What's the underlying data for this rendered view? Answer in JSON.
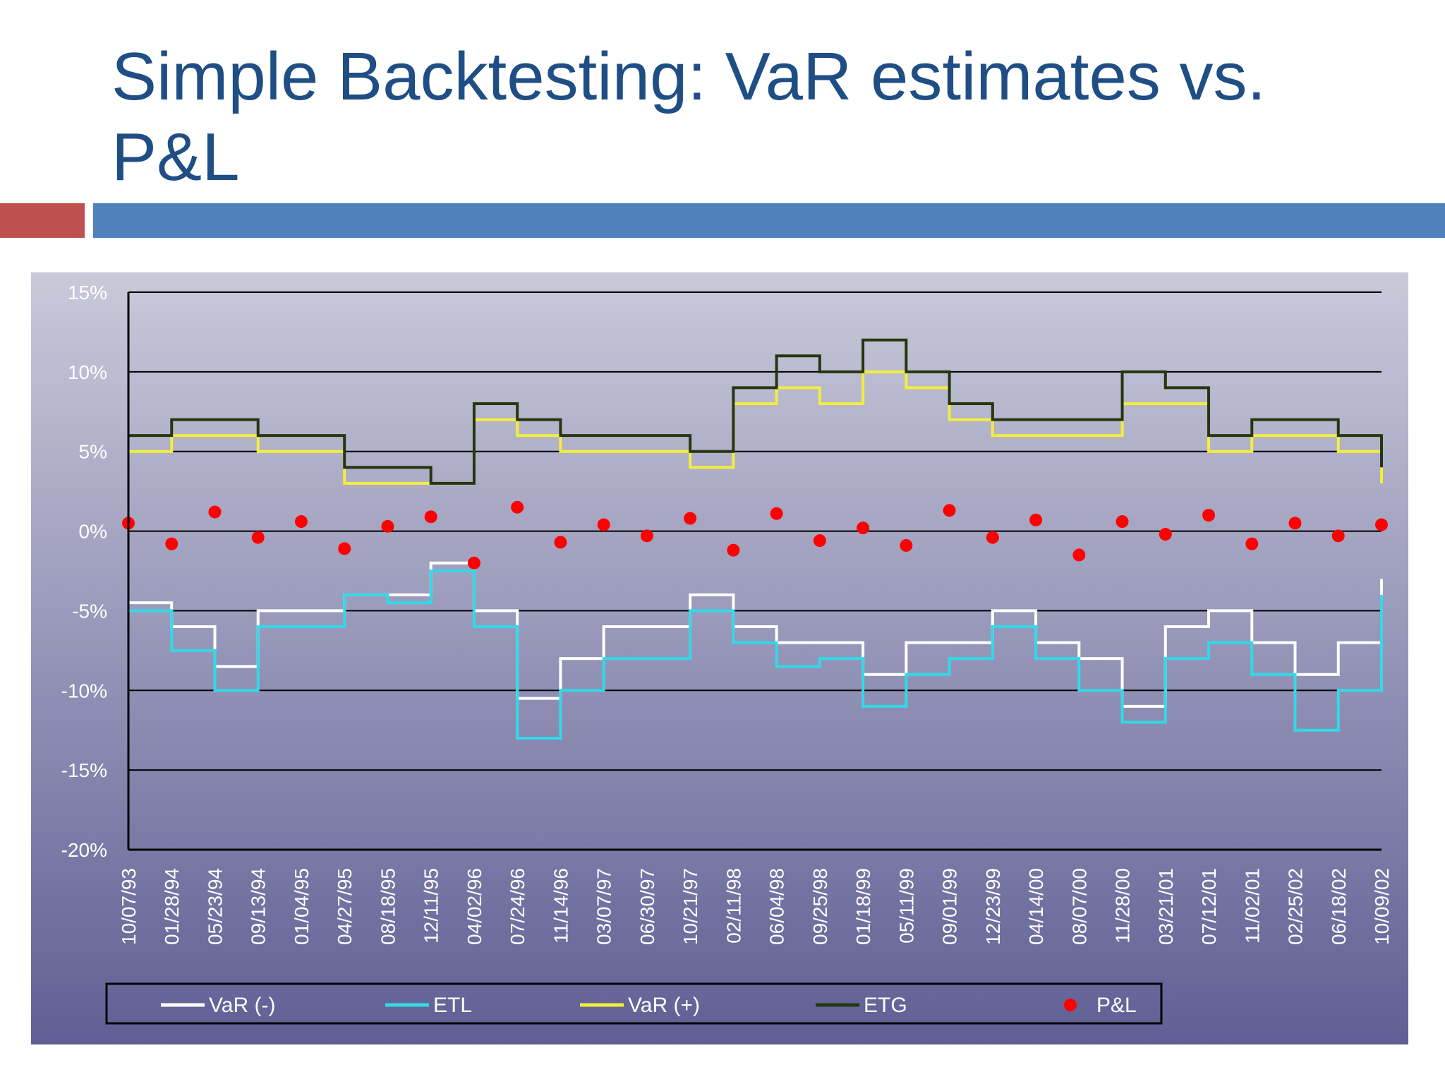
{
  "slide": {
    "title": "Simple Backtesting: VaR estimates vs. P&L"
  },
  "colors": {
    "title": "#1f4e85",
    "accent_red": "#c0504d",
    "accent_blue": "#4f81bd",
    "plot_bg_top": "#c9c9da",
    "plot_bg_bottom": "#5f5f95"
  },
  "chart_data": {
    "type": "line",
    "ylim": [
      -20,
      15
    ],
    "y_ticks": [
      "15%",
      "10%",
      "5%",
      "0%",
      "-5%",
      "-10%",
      "-15%",
      "-20%"
    ],
    "y_tick_values": [
      15,
      10,
      5,
      0,
      -5,
      -10,
      -15,
      -20
    ],
    "categories": [
      "10/07/93",
      "01/28/94",
      "05/23/94",
      "09/13/94",
      "01/04/95",
      "04/27/95",
      "08/18/95",
      "12/11/95",
      "04/02/96",
      "07/24/96",
      "11/14/96",
      "03/07/97",
      "06/30/97",
      "10/21/97",
      "02/11/98",
      "06/04/98",
      "09/25/98",
      "01/18/99",
      "05/11/99",
      "09/01/99",
      "12/23/99",
      "04/14/00",
      "08/07/00",
      "11/28/00",
      "03/21/01",
      "07/12/01",
      "11/02/01",
      "02/25/02",
      "06/18/02",
      "10/09/02"
    ],
    "legend_position": "bottom",
    "grid": true,
    "series": [
      {
        "name": "VaR (-)",
        "color": "#ffffff",
        "values": [
          -4.5,
          -6,
          -8.5,
          -5,
          -5,
          -4,
          -4,
          -2,
          -5,
          -10.5,
          -8,
          -6,
          -6,
          -4,
          -6,
          -7,
          -7,
          -9,
          -7,
          -7,
          -5,
          -7,
          -8,
          -11,
          -6,
          -5,
          -7,
          -9,
          -7,
          -3
        ]
      },
      {
        "name": "ETL",
        "color": "#33d9e8",
        "values": [
          -5,
          -7.5,
          -10,
          -6,
          -6,
          -4,
          -4.5,
          -2.5,
          -6,
          -13,
          -10,
          -8,
          -8,
          -5,
          -7,
          -8.5,
          -8,
          -11,
          -9,
          -8,
          -6,
          -8,
          -10,
          -12,
          -8,
          -7,
          -9,
          -12.5,
          -10,
          -4
        ]
      },
      {
        "name": "VaR (+)",
        "color": "#f2ef3a",
        "values": [
          5,
          6,
          6,
          5,
          5,
          3,
          3,
          3,
          7,
          6,
          5,
          5,
          5,
          4,
          8,
          9,
          8,
          10,
          9,
          7,
          6,
          6,
          6,
          8,
          8,
          5,
          6,
          6,
          5,
          3
        ]
      },
      {
        "name": "ETG",
        "color": "#26360f",
        "values": [
          6,
          7,
          7,
          6,
          6,
          4,
          4,
          3,
          8,
          7,
          6,
          6,
          6,
          5,
          9,
          11,
          10,
          12,
          10,
          8,
          7,
          7,
          7,
          10,
          9,
          6,
          7,
          7,
          6,
          4
        ]
      },
      {
        "name": "P&L",
        "color": "#ff0000",
        "values": [
          0.5,
          -0.8,
          1.2,
          -0.4,
          0.6,
          -1.1,
          0.3,
          0.9,
          -2,
          1.5,
          -0.7,
          0.4,
          -0.3,
          0.8,
          -1.2,
          1.1,
          -0.6,
          0.2,
          -0.9,
          1.3,
          -0.4,
          0.7,
          -1.5,
          0.6,
          -0.2,
          1.0,
          -0.8,
          0.5,
          -0.3,
          0.4
        ]
      }
    ]
  }
}
